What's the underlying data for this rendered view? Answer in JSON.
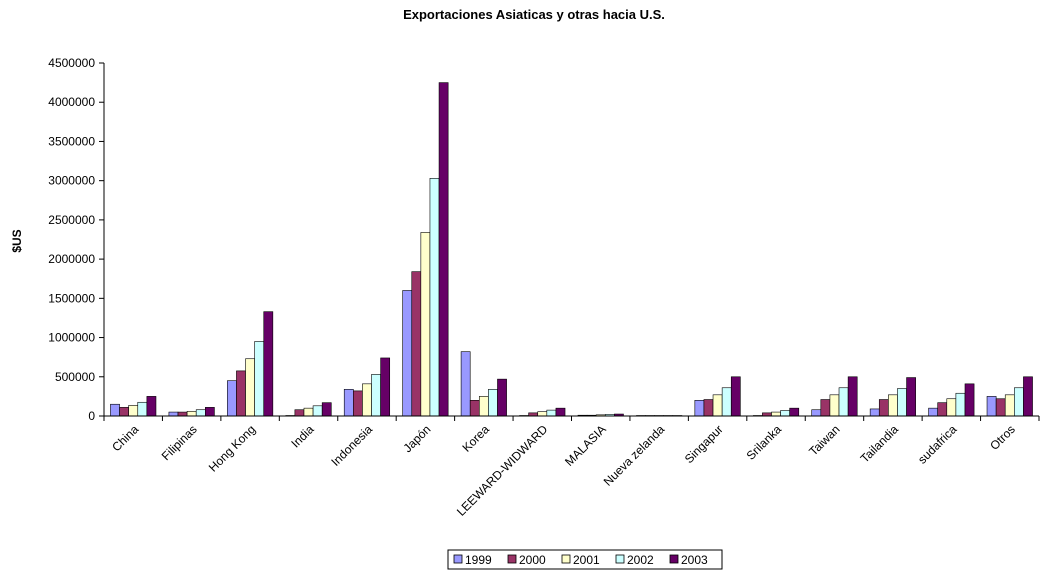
{
  "chart_data": {
    "type": "bar",
    "title": "Exportaciones Asiaticas y otras hacia U.S.",
    "xlabel": "",
    "ylabel": "$US",
    "ylim": [
      0,
      4500000
    ],
    "yticks": [
      "0",
      "500000",
      "1000000",
      "1500000",
      "2000000",
      "2500000",
      "3000000",
      "3500000",
      "4000000",
      "4500000"
    ],
    "grid": false,
    "legend_position": "bottom",
    "categories": [
      "China",
      "Filipinas",
      "Hong Kong",
      "India",
      "Indonesia",
      "Japón",
      "Korea",
      "LEEWARD-WIDWARD",
      "MALASIA",
      "Nueva zelanda",
      "Singapur",
      "Srilanka",
      "Taiwan",
      "Tailandia",
      "sudafrica",
      "Otros"
    ],
    "series": [
      {
        "name": "1999",
        "color": "#9999ff",
        "values": [
          150000,
          50000,
          450000,
          5000,
          340000,
          1600000,
          820000,
          5000,
          10000,
          3000,
          200000,
          5000,
          80000,
          90000,
          100000,
          250000
        ]
      },
      {
        "name": "2000",
        "color": "#993366",
        "values": [
          110000,
          50000,
          575000,
          80000,
          320000,
          1840000,
          200000,
          40000,
          10000,
          3000,
          210000,
          40000,
          210000,
          210000,
          170000,
          220000
        ]
      },
      {
        "name": "2001",
        "color": "#ffffcc",
        "values": [
          135000,
          60000,
          730000,
          100000,
          410000,
          2340000,
          250000,
          55000,
          15000,
          3000,
          270000,
          50000,
          270000,
          270000,
          220000,
          270000
        ]
      },
      {
        "name": "2002",
        "color": "#ccffff",
        "values": [
          175000,
          80000,
          950000,
          130000,
          530000,
          3030000,
          340000,
          75000,
          20000,
          3000,
          360000,
          70000,
          360000,
          350000,
          290000,
          360000
        ]
      },
      {
        "name": "2003",
        "color": "#660066",
        "values": [
          250000,
          110000,
          1330000,
          170000,
          740000,
          4250000,
          470000,
          100000,
          25000,
          5000,
          500000,
          100000,
          500000,
          490000,
          410000,
          500000
        ]
      }
    ]
  }
}
